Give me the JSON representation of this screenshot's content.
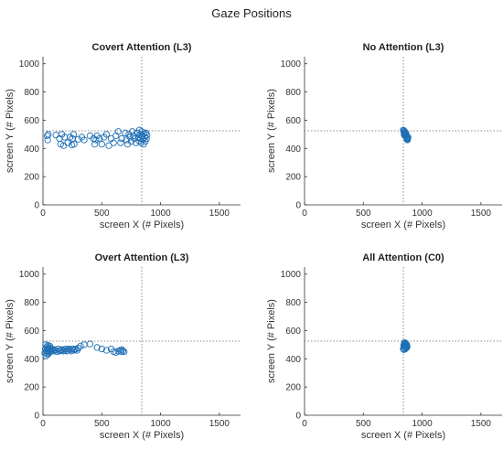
{
  "title": "Gaze Positions",
  "colors": {
    "marker": "#1f6fb5",
    "guide": "#8a8a8a",
    "axis": "#333333"
  },
  "chart_data": [
    {
      "type": "scatter",
      "title": "Covert Attention (L3)",
      "xlabel": "screen X (# Pixels)",
      "ylabel": "screen Y (# Pixels)",
      "xlim": [
        0,
        1680
      ],
      "ylim": [
        0,
        1050
      ],
      "xticks": [
        0,
        500,
        1000,
        1500
      ],
      "yticks": [
        0,
        200,
        400,
        600,
        800,
        1000
      ],
      "guides": {
        "x": 840,
        "y": 525
      },
      "points": [
        [
          35,
          490
        ],
        [
          40,
          460
        ],
        [
          45,
          500
        ],
        [
          110,
          495
        ],
        [
          140,
          470
        ],
        [
          150,
          430
        ],
        [
          160,
          500
        ],
        [
          175,
          420
        ],
        [
          185,
          480
        ],
        [
          210,
          440
        ],
        [
          230,
          480
        ],
        [
          245,
          425
        ],
        [
          250,
          470
        ],
        [
          260,
          500
        ],
        [
          265,
          430
        ],
        [
          300,
          465
        ],
        [
          330,
          480
        ],
        [
          350,
          460
        ],
        [
          400,
          490
        ],
        [
          430,
          470
        ],
        [
          440,
          430
        ],
        [
          450,
          460
        ],
        [
          460,
          490
        ],
        [
          480,
          470
        ],
        [
          500,
          430
        ],
        [
          520,
          480
        ],
        [
          540,
          500
        ],
        [
          560,
          420
        ],
        [
          580,
          470
        ],
        [
          600,
          440
        ],
        [
          620,
          490
        ],
        [
          640,
          520
        ],
        [
          660,
          440
        ],
        [
          670,
          470
        ],
        [
          700,
          510
        ],
        [
          710,
          460
        ],
        [
          720,
          430
        ],
        [
          730,
          500
        ],
        [
          740,
          480
        ],
        [
          750,
          450
        ],
        [
          760,
          520
        ],
        [
          770,
          490
        ],
        [
          780,
          470
        ],
        [
          790,
          440
        ],
        [
          800,
          510
        ],
        [
          810,
          480
        ],
        [
          815,
          455
        ],
        [
          820,
          530
        ],
        [
          825,
          500
        ],
        [
          830,
          470
        ],
        [
          835,
          440
        ],
        [
          840,
          520
        ],
        [
          845,
          490
        ],
        [
          850,
          465
        ],
        [
          855,
          430
        ],
        [
          860,
          505
        ],
        [
          865,
          480
        ],
        [
          870,
          450
        ],
        [
          875,
          510
        ],
        [
          880,
          470
        ],
        [
          885,
          495
        ]
      ]
    },
    {
      "type": "scatter",
      "title": "No Attention (L3)",
      "xlabel": "screen X (# Pixels)",
      "ylabel": "screen Y (# Pixels)",
      "xlim": [
        0,
        1680
      ],
      "ylim": [
        0,
        1050
      ],
      "xticks": [
        0,
        500,
        1000,
        1500
      ],
      "yticks": [
        0,
        200,
        400,
        600,
        800,
        1000
      ],
      "guides": {
        "x": 840,
        "y": 525
      },
      "points": [
        [
          840,
          530
        ],
        [
          845,
          515
        ],
        [
          850,
          505
        ],
        [
          848,
          495
        ],
        [
          852,
          520
        ],
        [
          855,
          500
        ],
        [
          858,
          490
        ],
        [
          860,
          485
        ],
        [
          862,
          510
        ],
        [
          865,
          480
        ],
        [
          868,
          475
        ],
        [
          870,
          470
        ],
        [
          872,
          465
        ],
        [
          875,
          460
        ],
        [
          878,
          470
        ],
        [
          880,
          480
        ],
        [
          846,
          525
        ],
        [
          854,
          512
        ],
        [
          864,
          495
        ],
        [
          874,
          475
        ]
      ]
    },
    {
      "type": "scatter",
      "title": "Overt Attention (L3)",
      "xlabel": "screen X (# Pixels)",
      "ylabel": "screen Y (# Pixels)",
      "xlim": [
        0,
        1680
      ],
      "ylim": [
        0,
        1050
      ],
      "xticks": [
        0,
        500,
        1000,
        1500
      ],
      "yticks": [
        0,
        200,
        400,
        600,
        800,
        1000
      ],
      "guides": {
        "x": 840,
        "y": 525
      },
      "points": [
        [
          15,
          440
        ],
        [
          20,
          470
        ],
        [
          22,
          500
        ],
        [
          25,
          420
        ],
        [
          30,
          455
        ],
        [
          32,
          485
        ],
        [
          35,
          440
        ],
        [
          38,
          470
        ],
        [
          40,
          430
        ],
        [
          42,
          495
        ],
        [
          45,
          455
        ],
        [
          48,
          480
        ],
        [
          50,
          440
        ],
        [
          55,
          465
        ],
        [
          58,
          490
        ],
        [
          60,
          450
        ],
        [
          65,
          475
        ],
        [
          70,
          455
        ],
        [
          75,
          470
        ],
        [
          80,
          460
        ],
        [
          90,
          455
        ],
        [
          100,
          465
        ],
        [
          110,
          460
        ],
        [
          120,
          450
        ],
        [
          130,
          470
        ],
        [
          140,
          455
        ],
        [
          150,
          460
        ],
        [
          160,
          465
        ],
        [
          170,
          455
        ],
        [
          180,
          460
        ],
        [
          190,
          470
        ],
        [
          200,
          455
        ],
        [
          210,
          460
        ],
        [
          220,
          470
        ],
        [
          230,
          465
        ],
        [
          240,
          455
        ],
        [
          250,
          470
        ],
        [
          260,
          460
        ],
        [
          270,
          465
        ],
        [
          280,
          470
        ],
        [
          290,
          460
        ],
        [
          300,
          475
        ],
        [
          320,
          490
        ],
        [
          350,
          500
        ],
        [
          400,
          505
        ],
        [
          460,
          480
        ],
        [
          500,
          470
        ],
        [
          540,
          460
        ],
        [
          580,
          470
        ],
        [
          600,
          450
        ],
        [
          620,
          445
        ],
        [
          640,
          455
        ],
        [
          655,
          460
        ],
        [
          665,
          450
        ],
        [
          670,
          465
        ],
        [
          680,
          455
        ],
        [
          690,
          450
        ]
      ]
    },
    {
      "type": "scatter",
      "title": "All Attention (C0)",
      "xlabel": "screen X (# Pixels)",
      "ylabel": "screen Y (# Pixels)",
      "xlim": [
        0,
        1680
      ],
      "ylim": [
        0,
        1050
      ],
      "xticks": [
        0,
        500,
        1000,
        1500
      ],
      "yticks": [
        0,
        200,
        400,
        600,
        800,
        1000
      ],
      "guides": {
        "x": 840,
        "y": 525
      },
      "points": [
        [
          840,
          470
        ],
        [
          845,
          480
        ],
        [
          850,
          490
        ],
        [
          855,
          500
        ],
        [
          860,
          510
        ],
        [
          862,
          495
        ],
        [
          858,
          485
        ],
        [
          852,
          475
        ],
        [
          848,
          505
        ],
        [
          866,
          490
        ],
        [
          870,
          480
        ],
        [
          843,
          495
        ],
        [
          857,
          470
        ],
        [
          863,
          505
        ],
        [
          868,
          500
        ],
        [
          850,
          515
        ],
        [
          845,
          465
        ],
        [
          872,
          490
        ]
      ]
    }
  ]
}
